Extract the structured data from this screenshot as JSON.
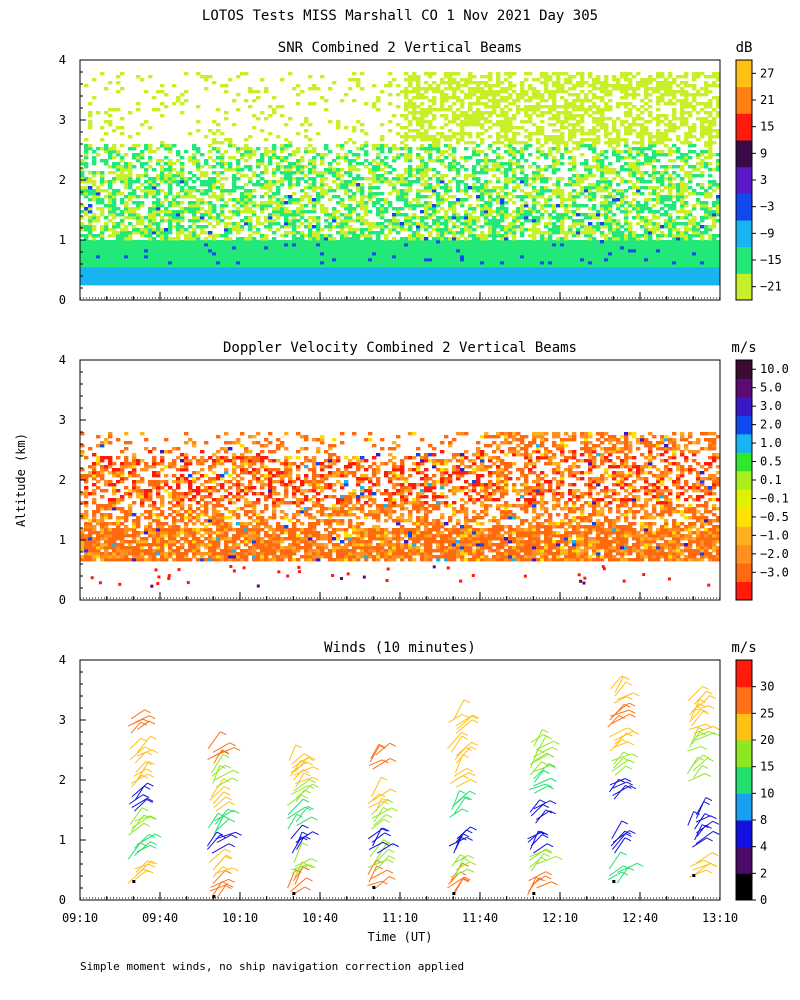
{
  "figure": {
    "title": "LOTOS Tests MISS Marshall CO   1 Nov 2021 Day 305",
    "ylabel": "Altitude (km)",
    "xlabel": "Time (UT)",
    "footnote": "Simple moment winds, no ship navigation correction applied",
    "x_ticks": [
      "09:10",
      "09:40",
      "10:10",
      "10:40",
      "11:10",
      "11:40",
      "12:10",
      "12:40",
      "13:10"
    ],
    "y_ticks": [
      "0",
      "1",
      "2",
      "3",
      "4"
    ],
    "xlim_minutes_utc": [
      550,
      790
    ],
    "ylim_km": [
      0,
      4
    ]
  },
  "chart_data": [
    {
      "type": "heatmap",
      "title": "SNR Combined 2 Vertical Beams",
      "xlabel": "Time (UT)",
      "ylabel": "Altitude (km)",
      "ylim": [
        0,
        4
      ],
      "colorbar": {
        "unit": "dB",
        "labels": [
          "27",
          "21",
          "15",
          "9",
          "3",
          "−3",
          "−9",
          "−15",
          "−21"
        ],
        "bins": [
          [
            -24,
            -18
          ],
          [
            -18,
            -12
          ],
          [
            -12,
            -6
          ],
          [
            -6,
            0
          ],
          [
            0,
            6
          ],
          [
            6,
            12
          ],
          [
            12,
            18
          ],
          [
            18,
            24
          ],
          [
            24,
            30
          ]
        ],
        "colors": [
          "#c8f02a",
          "#22e87a",
          "#18b4f2",
          "#1048f0",
          "#5a18c8",
          "#3a0a48",
          "#ff1a0a",
          "#ff8010",
          "#ffc014"
        ]
      },
      "layers": [
        {
          "altitude_km": [
            0.25,
            0.55
          ],
          "value_db": -9,
          "note": "persistent near-surface band"
        },
        {
          "altitude_km": [
            0.55,
            1.0
          ],
          "value_db": -15
        },
        {
          "altitude_km": [
            1.0,
            2.6
          ],
          "value_db": -18
        },
        {
          "altitude_km": [
            2.6,
            3.8
          ],
          "value_db": -21,
          "note": "patchy, mainly after 11:10"
        }
      ]
    },
    {
      "type": "heatmap",
      "title": "Doppler Velocity Combined 2 Vertical Beams",
      "xlabel": "Time (UT)",
      "ylabel": "Altitude (km)",
      "ylim": [
        0,
        4
      ],
      "colorbar": {
        "unit": "m/s",
        "labels": [
          "10.0",
          "5.0",
          "3.0",
          "2.0",
          "1.0",
          "0.5",
          "0.1",
          "−0.1",
          "−0.5",
          "−1.0",
          "−2.0",
          "−3.0"
        ],
        "colors": [
          "#ff1a0a",
          "#ff6a10",
          "#ff9020",
          "#ffb020",
          "#ffe000",
          "#e0f000",
          "#a8f020",
          "#2ee830",
          "#18b4f2",
          "#1048f0",
          "#3a18c8",
          "#5a0a70",
          "#3a0a30"
        ]
      },
      "layers": [
        {
          "altitude_km": [
            0.65,
            2.8
          ],
          "value_ms": -1.0,
          "note": "mostly weak downward motion"
        },
        {
          "altitude_km": [
            1.6,
            2.5
          ],
          "value_ms": -2.5,
          "note": "strongest downward patches"
        }
      ]
    },
    {
      "type": "scatter",
      "title": "Winds (10 minutes)",
      "xlabel": "Time (UT)",
      "ylabel": "Altitude (km)",
      "ylim": [
        0,
        4
      ],
      "colorbar": {
        "unit": "m/s",
        "labels": [
          "30",
          "25",
          "20",
          "15",
          "10",
          "8",
          "4",
          "2",
          "0"
        ],
        "colors": [
          "#000000",
          "#4a0a68",
          "#1010e0",
          "#18a0f2",
          "#22e070",
          "#8ee820",
          "#ffc014",
          "#ff7018",
          "#ff1a0a"
        ]
      },
      "profiles": [
        {
          "time": "09:30",
          "speeds_ms": [
            24,
            12,
            15,
            5,
            20,
            22,
            26
          ],
          "altitudes_km": [
            0.4,
            0.8,
            1.2,
            1.6,
            2.0,
            2.4,
            2.9
          ]
        },
        {
          "time": "10:00",
          "speeds_ms": [
            26,
            20,
            5,
            10,
            24,
            19,
            27
          ],
          "altitudes_km": [
            0.15,
            0.5,
            0.9,
            1.2,
            1.6,
            2.0,
            2.4
          ]
        },
        {
          "time": "10:30",
          "speeds_ms": [
            26,
            15,
            5,
            10,
            16,
            20,
            22
          ],
          "altitudes_km": [
            0.2,
            0.5,
            0.9,
            1.3,
            1.7,
            2.0,
            2.2
          ]
        },
        {
          "time": "11:00",
          "speeds_ms": [
            27,
            15,
            5,
            18,
            20,
            25
          ],
          "altitudes_km": [
            0.3,
            0.6,
            0.9,
            1.3,
            1.6,
            2.3
          ]
        },
        {
          "time": "11:30",
          "speeds_ms": [
            25,
            15,
            5,
            12,
            20,
            22,
            24
          ],
          "altitudes_km": [
            0.2,
            0.5,
            0.9,
            1.5,
            2.0,
            2.4,
            2.9
          ]
        },
        {
          "time": "12:00",
          "speeds_ms": [
            25,
            15,
            5,
            5,
            12,
            16,
            18
          ],
          "altitudes_km": [
            0.2,
            0.6,
            0.9,
            1.4,
            1.9,
            2.2,
            2.5
          ]
        },
        {
          "time": "12:30",
          "speeds_ms": [
            12,
            5,
            5,
            15,
            22,
            25,
            22
          ],
          "altitudes_km": [
            0.4,
            0.9,
            1.8,
            2.2,
            2.6,
            3.0,
            3.4
          ]
        },
        {
          "time": "13:00",
          "speeds_ms": [
            22,
            5,
            5,
            16,
            18,
            20,
            22
          ],
          "altitudes_km": [
            0.5,
            1.0,
            1.3,
            2.1,
            2.6,
            2.9,
            3.2
          ]
        }
      ]
    }
  ]
}
